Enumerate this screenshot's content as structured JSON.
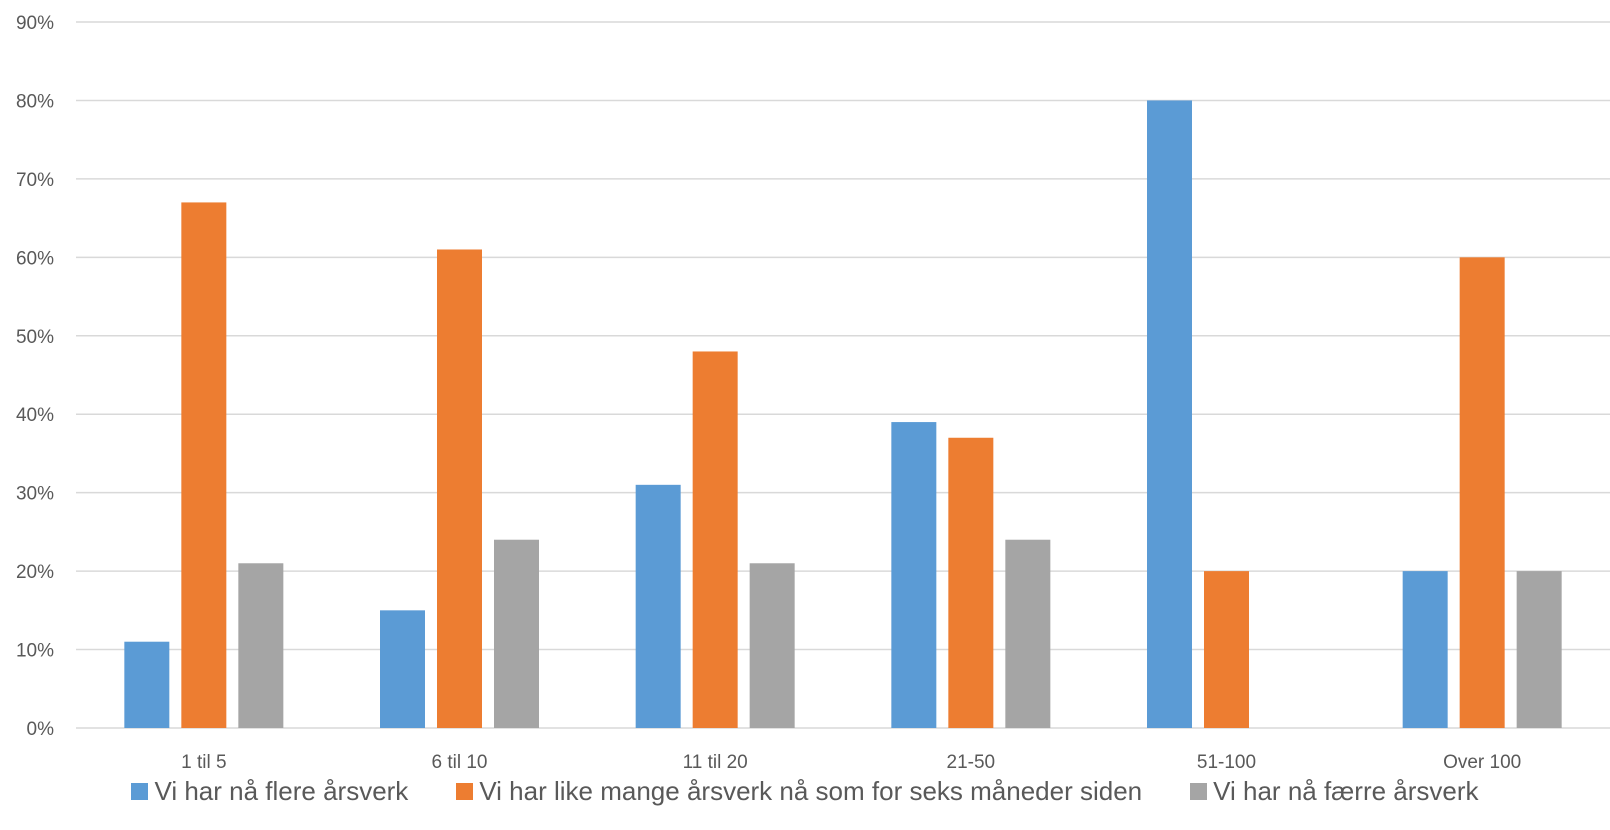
{
  "chart_data": {
    "type": "bar",
    "title": "",
    "xlabel": "",
    "ylabel": "",
    "categories": [
      "1 til 5",
      "6 til 10",
      "11 til 20",
      "21-50",
      "51-100",
      "Over 100"
    ],
    "series": [
      {
        "name": "Vi har nå flere årsverk",
        "color": "#5B9BD5",
        "values": [
          11,
          15,
          31,
          39,
          80,
          20
        ]
      },
      {
        "name": "Vi har like mange årsverk nå som for seks måneder siden",
        "color": "#ED7D31",
        "values": [
          67,
          61,
          48,
          37,
          20,
          60
        ]
      },
      {
        "name": "Vi har nå færre årsverk",
        "color": "#A5A5A5",
        "values": [
          21,
          24,
          21,
          24,
          0,
          20
        ]
      }
    ],
    "ylim": [
      0,
      90
    ],
    "yticks": [
      "0%",
      "10%",
      "20%",
      "30%",
      "40%",
      "50%",
      "60%",
      "70%",
      "80%",
      "90%"
    ],
    "grid": true,
    "gridline_color": "#D9D9D9",
    "legend_position": "bottom"
  }
}
